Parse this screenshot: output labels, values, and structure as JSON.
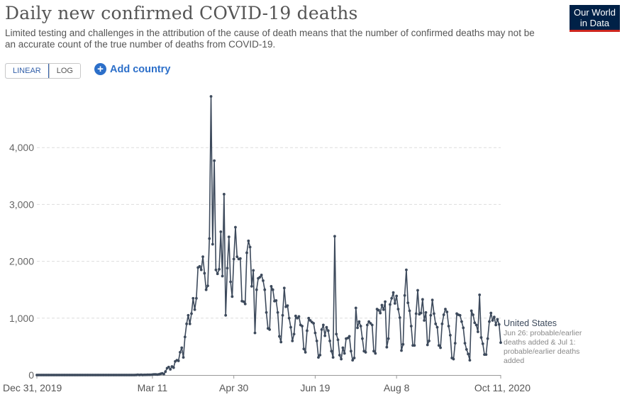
{
  "header": {
    "title": "Daily new confirmed COVID-19 deaths",
    "subtitle": "Limited testing and challenges in the attribution of the cause of death means that the number of confirmed deaths may not be an accurate count of the true number of deaths from COVID-19."
  },
  "logo": {
    "line1": "Our World",
    "line2": "in Data",
    "bg": "#002147",
    "accent": "#ce261e"
  },
  "controls": {
    "linear_label": "LINEAR",
    "log_label": "LOG",
    "add_country_label": "Add country"
  },
  "colors": {
    "series": "#3d4a5c",
    "grid": "#dddddd",
    "accent_blue": "#2c6fc9"
  },
  "chart_data": {
    "type": "line",
    "title": "Daily new confirmed COVID-19 deaths",
    "xlabel": "",
    "ylabel": "",
    "x_start": "2019-12-31",
    "x_end": "2020-10-11",
    "xlim": [
      "2019-12-31",
      "2020-10-11"
    ],
    "ylim": [
      0,
      5000
    ],
    "yticks": [
      0,
      1000,
      2000,
      3000,
      4000
    ],
    "ytick_labels": [
      "0",
      "1,000",
      "2,000",
      "3,000",
      "4,000"
    ],
    "xtick_labels": [
      "Dec 31, 2019",
      "Mar 11",
      "Apr 30",
      "Jun 19",
      "Aug 8",
      "Oct 11, 2020"
    ],
    "xtick_dates": [
      "2019-12-31",
      "2020-03-11",
      "2020-04-30",
      "2020-06-19",
      "2020-08-08",
      "2020-10-11"
    ],
    "grid": true,
    "series": [
      {
        "name": "United States",
        "annotation": "Jun 26: probable/earlier deaths added & Jul 1: probable/earlier deaths added",
        "values": [
          {
            "x": "2020-03-01",
            "y": 1
          },
          {
            "x": "2020-03-02",
            "y": 5
          },
          {
            "x": "2020-03-03",
            "y": 1
          },
          {
            "x": "2020-03-04",
            "y": 4
          },
          {
            "x": "2020-03-05",
            "y": 1
          },
          {
            "x": "2020-03-06",
            "y": 3
          },
          {
            "x": "2020-03-07",
            "y": 3
          },
          {
            "x": "2020-03-08",
            "y": 4
          },
          {
            "x": "2020-03-09",
            "y": 4
          },
          {
            "x": "2020-03-10",
            "y": 5
          },
          {
            "x": "2020-03-11",
            "y": 8
          },
          {
            "x": "2020-03-12",
            "y": 11
          },
          {
            "x": "2020-03-13",
            "y": 10
          },
          {
            "x": "2020-03-14",
            "y": 8
          },
          {
            "x": "2020-03-15",
            "y": 12
          },
          {
            "x": "2020-03-16",
            "y": 21
          },
          {
            "x": "2020-03-17",
            "y": 30
          },
          {
            "x": "2020-03-18",
            "y": 17
          },
          {
            "x": "2020-03-19",
            "y": 60
          },
          {
            "x": "2020-03-20",
            "y": 120
          },
          {
            "x": "2020-03-21",
            "y": 140
          },
          {
            "x": "2020-03-22",
            "y": 100
          },
          {
            "x": "2020-03-23",
            "y": 150
          },
          {
            "x": "2020-03-24",
            "y": 130
          },
          {
            "x": "2020-03-25",
            "y": 240
          },
          {
            "x": "2020-03-26",
            "y": 260
          },
          {
            "x": "2020-03-27",
            "y": 250
          },
          {
            "x": "2020-03-28",
            "y": 400
          },
          {
            "x": "2020-03-29",
            "y": 480
          },
          {
            "x": "2020-03-30",
            "y": 310
          },
          {
            "x": "2020-03-31",
            "y": 670
          },
          {
            "x": "2020-04-01",
            "y": 900
          },
          {
            "x": "2020-04-02",
            "y": 1050
          },
          {
            "x": "2020-04-03",
            "y": 900
          },
          {
            "x": "2020-04-04",
            "y": 1080
          },
          {
            "x": "2020-04-05",
            "y": 1350
          },
          {
            "x": "2020-04-06",
            "y": 1150
          },
          {
            "x": "2020-04-07",
            "y": 1350
          },
          {
            "x": "2020-04-08",
            "y": 1890
          },
          {
            "x": "2020-04-09",
            "y": 1910
          },
          {
            "x": "2020-04-10",
            "y": 1850
          },
          {
            "x": "2020-04-11",
            "y": 2080
          },
          {
            "x": "2020-04-12",
            "y": 1790
          },
          {
            "x": "2020-04-13",
            "y": 1500
          },
          {
            "x": "2020-04-14",
            "y": 1570
          },
          {
            "x": "2020-04-15",
            "y": 2400
          },
          {
            "x": "2020-04-16",
            "y": 4900
          },
          {
            "x": "2020-04-17",
            "y": 2300
          },
          {
            "x": "2020-04-18",
            "y": 3770
          },
          {
            "x": "2020-04-19",
            "y": 1850
          },
          {
            "x": "2020-04-20",
            "y": 1780
          },
          {
            "x": "2020-04-21",
            "y": 1860
          },
          {
            "x": "2020-04-22",
            "y": 2520
          },
          {
            "x": "2020-04-23",
            "y": 1740
          },
          {
            "x": "2020-04-24",
            "y": 3180
          },
          {
            "x": "2020-04-25",
            "y": 1050
          },
          {
            "x": "2020-04-26",
            "y": 1880
          },
          {
            "x": "2020-04-27",
            "y": 2430
          },
          {
            "x": "2020-04-28",
            "y": 1640
          },
          {
            "x": "2020-04-29",
            "y": 1380
          },
          {
            "x": "2020-04-30",
            "y": 2040
          },
          {
            "x": "2020-05-01",
            "y": 2600
          },
          {
            "x": "2020-05-02",
            "y": 2080
          },
          {
            "x": "2020-05-03",
            "y": 2040
          },
          {
            "x": "2020-05-04",
            "y": 2050
          },
          {
            "x": "2020-05-05",
            "y": 1300
          },
          {
            "x": "2020-05-06",
            "y": 1290
          },
          {
            "x": "2020-05-07",
            "y": 1250
          },
          {
            "x": "2020-05-08",
            "y": 2150
          },
          {
            "x": "2020-05-09",
            "y": 2360
          },
          {
            "x": "2020-05-10",
            "y": 2250
          },
          {
            "x": "2020-05-11",
            "y": 1560
          },
          {
            "x": "2020-05-12",
            "y": 1840
          },
          {
            "x": "2020-05-13",
            "y": 740
          },
          {
            "x": "2020-05-14",
            "y": 1500
          },
          {
            "x": "2020-05-15",
            "y": 1700
          },
          {
            "x": "2020-05-16",
            "y": 1720
          },
          {
            "x": "2020-05-17",
            "y": 1760
          },
          {
            "x": "2020-05-18",
            "y": 1660
          },
          {
            "x": "2020-05-19",
            "y": 1500
          },
          {
            "x": "2020-05-20",
            "y": 1100
          },
          {
            "x": "2020-05-21",
            "y": 820
          },
          {
            "x": "2020-05-22",
            "y": 800
          },
          {
            "x": "2020-05-23",
            "y": 1560
          },
          {
            "x": "2020-05-24",
            "y": 1500
          },
          {
            "x": "2020-05-25",
            "y": 1300
          },
          {
            "x": "2020-05-26",
            "y": 1310
          },
          {
            "x": "2020-05-27",
            "y": 1100
          },
          {
            "x": "2020-05-28",
            "y": 680
          },
          {
            "x": "2020-05-29",
            "y": 580
          },
          {
            "x": "2020-05-30",
            "y": 1050
          },
          {
            "x": "2020-05-31",
            "y": 1530
          },
          {
            "x": "2020-06-01",
            "y": 1200
          },
          {
            "x": "2020-06-02",
            "y": 1220
          },
          {
            "x": "2020-06-03",
            "y": 1000
          },
          {
            "x": "2020-06-04",
            "y": 840
          },
          {
            "x": "2020-06-05",
            "y": 600
          },
          {
            "x": "2020-06-06",
            "y": 720
          },
          {
            "x": "2020-06-07",
            "y": 1040
          },
          {
            "x": "2020-06-08",
            "y": 1000
          },
          {
            "x": "2020-06-09",
            "y": 1030
          },
          {
            "x": "2020-06-10",
            "y": 880
          },
          {
            "x": "2020-06-11",
            "y": 860
          },
          {
            "x": "2020-06-12",
            "y": 460
          },
          {
            "x": "2020-06-13",
            "y": 400
          },
          {
            "x": "2020-06-14",
            "y": 780
          },
          {
            "x": "2020-06-15",
            "y": 1000
          },
          {
            "x": "2020-06-16",
            "y": 960
          },
          {
            "x": "2020-06-17",
            "y": 930
          },
          {
            "x": "2020-06-18",
            "y": 910
          },
          {
            "x": "2020-06-19",
            "y": 740
          },
          {
            "x": "2020-06-20",
            "y": 600
          },
          {
            "x": "2020-06-21",
            "y": 310
          },
          {
            "x": "2020-06-22",
            "y": 350
          },
          {
            "x": "2020-06-23",
            "y": 800
          },
          {
            "x": "2020-06-24",
            "y": 880
          },
          {
            "x": "2020-06-25",
            "y": 690
          },
          {
            "x": "2020-06-26",
            "y": 840
          },
          {
            "x": "2020-06-27",
            "y": 780
          },
          {
            "x": "2020-06-28",
            "y": 600
          },
          {
            "x": "2020-06-29",
            "y": 420
          },
          {
            "x": "2020-06-30",
            "y": 310
          },
          {
            "x": "2020-07-01",
            "y": 2440
          },
          {
            "x": "2020-07-02",
            "y": 720
          },
          {
            "x": "2020-07-03",
            "y": 620
          },
          {
            "x": "2020-07-04",
            "y": 350
          },
          {
            "x": "2020-07-05",
            "y": 280
          },
          {
            "x": "2020-07-06",
            "y": 480
          },
          {
            "x": "2020-07-07",
            "y": 380
          },
          {
            "x": "2020-07-08",
            "y": 640
          },
          {
            "x": "2020-07-09",
            "y": 650
          },
          {
            "x": "2020-07-10",
            "y": 680
          },
          {
            "x": "2020-07-11",
            "y": 420
          },
          {
            "x": "2020-07-12",
            "y": 260
          },
          {
            "x": "2020-07-13",
            "y": 300
          },
          {
            "x": "2020-07-14",
            "y": 1180
          },
          {
            "x": "2020-07-15",
            "y": 830
          },
          {
            "x": "2020-07-16",
            "y": 940
          },
          {
            "x": "2020-07-17",
            "y": 860
          },
          {
            "x": "2020-07-18",
            "y": 640
          },
          {
            "x": "2020-07-19",
            "y": 420
          },
          {
            "x": "2020-07-20",
            "y": 400
          },
          {
            "x": "2020-07-21",
            "y": 880
          },
          {
            "x": "2020-07-22",
            "y": 940
          },
          {
            "x": "2020-07-23",
            "y": 910
          },
          {
            "x": "2020-07-24",
            "y": 880
          },
          {
            "x": "2020-07-25",
            "y": 420
          },
          {
            "x": "2020-07-26",
            "y": 380
          },
          {
            "x": "2020-07-27",
            "y": 1160
          },
          {
            "x": "2020-07-28",
            "y": 1140
          },
          {
            "x": "2020-07-29",
            "y": 1090
          },
          {
            "x": "2020-07-30",
            "y": 1230
          },
          {
            "x": "2020-07-31",
            "y": 1150
          },
          {
            "x": "2020-08-01",
            "y": 1290
          },
          {
            "x": "2020-08-02",
            "y": 490
          },
          {
            "x": "2020-08-03",
            "y": 640
          },
          {
            "x": "2020-08-04",
            "y": 1240
          },
          {
            "x": "2020-08-05",
            "y": 1350
          },
          {
            "x": "2020-08-06",
            "y": 1450
          },
          {
            "x": "2020-08-07",
            "y": 1260
          },
          {
            "x": "2020-08-08",
            "y": 1390
          },
          {
            "x": "2020-08-09",
            "y": 1160
          },
          {
            "x": "2020-08-10",
            "y": 1010
          },
          {
            "x": "2020-08-11",
            "y": 430
          },
          {
            "x": "2020-08-12",
            "y": 540
          },
          {
            "x": "2020-08-13",
            "y": 1400
          },
          {
            "x": "2020-08-14",
            "y": 1850
          },
          {
            "x": "2020-08-15",
            "y": 1270
          },
          {
            "x": "2020-08-16",
            "y": 1130
          },
          {
            "x": "2020-08-17",
            "y": 860
          },
          {
            "x": "2020-08-18",
            "y": 520
          },
          {
            "x": "2020-08-19",
            "y": 520
          },
          {
            "x": "2020-08-20",
            "y": 1080
          },
          {
            "x": "2020-08-21",
            "y": 1490
          },
          {
            "x": "2020-08-22",
            "y": 1070
          },
          {
            "x": "2020-08-23",
            "y": 1090
          },
          {
            "x": "2020-08-24",
            "y": 1330
          },
          {
            "x": "2020-08-25",
            "y": 960
          },
          {
            "x": "2020-08-26",
            "y": 1100
          },
          {
            "x": "2020-08-27",
            "y": 530
          },
          {
            "x": "2020-08-28",
            "y": 600
          },
          {
            "x": "2020-08-29",
            "y": 1050
          },
          {
            "x": "2020-08-30",
            "y": 1320
          },
          {
            "x": "2020-08-31",
            "y": 1080
          },
          {
            "x": "2020-09-01",
            "y": 900
          },
          {
            "x": "2020-09-02",
            "y": 840
          },
          {
            "x": "2020-09-03",
            "y": 520
          },
          {
            "x": "2020-09-04",
            "y": 480
          },
          {
            "x": "2020-09-05",
            "y": 900
          },
          {
            "x": "2020-09-06",
            "y": 1060
          },
          {
            "x": "2020-09-07",
            "y": 1160
          },
          {
            "x": "2020-09-08",
            "y": 1110
          },
          {
            "x": "2020-09-09",
            "y": 860
          },
          {
            "x": "2020-09-10",
            "y": 700
          },
          {
            "x": "2020-09-11",
            "y": 300
          },
          {
            "x": "2020-09-12",
            "y": 280
          },
          {
            "x": "2020-09-13",
            "y": 560
          },
          {
            "x": "2020-09-14",
            "y": 1080
          },
          {
            "x": "2020-09-15",
            "y": 1060
          },
          {
            "x": "2020-09-16",
            "y": 1050
          },
          {
            "x": "2020-09-17",
            "y": 940
          },
          {
            "x": "2020-09-18",
            "y": 830
          },
          {
            "x": "2020-09-19",
            "y": 560
          },
          {
            "x": "2020-09-20",
            "y": 450
          },
          {
            "x": "2020-09-21",
            "y": 370
          },
          {
            "x": "2020-09-22",
            "y": 260
          },
          {
            "x": "2020-09-23",
            "y": 1130
          },
          {
            "x": "2020-09-24",
            "y": 1060
          },
          {
            "x": "2020-09-25",
            "y": 920
          },
          {
            "x": "2020-09-26",
            "y": 880
          },
          {
            "x": "2020-09-27",
            "y": 760
          },
          {
            "x": "2020-09-28",
            "y": 1410
          },
          {
            "x": "2020-09-29",
            "y": 660
          },
          {
            "x": "2020-09-30",
            "y": 550
          },
          {
            "x": "2020-10-01",
            "y": 360
          },
          {
            "x": "2020-10-02",
            "y": 360
          },
          {
            "x": "2020-10-03",
            "y": 640
          },
          {
            "x": "2020-10-04",
            "y": 940
          },
          {
            "x": "2020-10-05",
            "y": 1090
          },
          {
            "x": "2020-10-06",
            "y": 960
          },
          {
            "x": "2020-10-07",
            "y": 1020
          },
          {
            "x": "2020-10-08",
            "y": 880
          },
          {
            "x": "2020-10-09",
            "y": 980
          },
          {
            "x": "2020-10-10",
            "y": 890
          },
          {
            "x": "2020-10-11",
            "y": 570
          }
        ]
      }
    ]
  }
}
